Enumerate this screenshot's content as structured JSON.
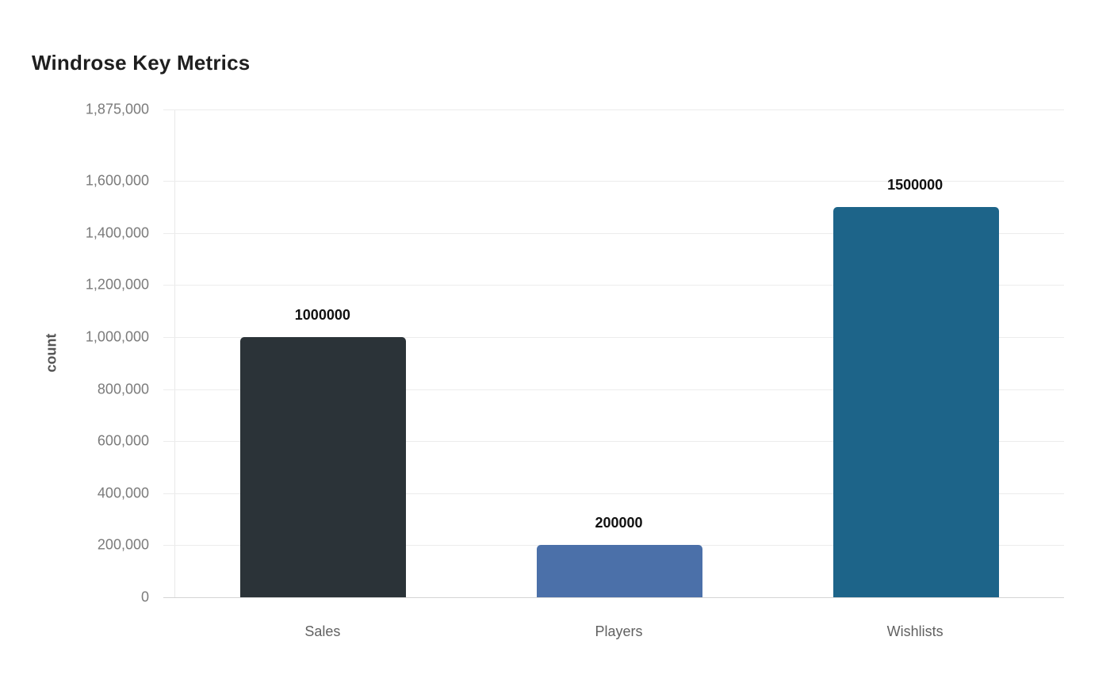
{
  "title": "Windrose Key Metrics",
  "y_axis_title": "count",
  "chart_data": {
    "type": "bar",
    "title": "Windrose Key Metrics",
    "xlabel": "",
    "ylabel": "count",
    "categories": [
      "Sales",
      "Players",
      "Wishlists"
    ],
    "values": [
      1000000,
      200000,
      1500000
    ],
    "value_labels": [
      "1000000",
      "200000",
      "1500000"
    ],
    "bar_colors": [
      "#2b3338",
      "#4b70a9",
      "#1d6489"
    ],
    "ylim": [
      0,
      1875000
    ],
    "yticks": [
      0,
      200000,
      400000,
      600000,
      800000,
      1000000,
      1200000,
      1400000,
      1600000,
      1875000
    ],
    "ytick_labels": [
      "0",
      "200,000",
      "400,000",
      "600,000",
      "800,000",
      "1,000,000",
      "1,200,000",
      "1,400,000",
      "1,600,000",
      "1,875,000"
    ],
    "grid": true,
    "legend": false,
    "background_color": "#ffffff",
    "gridline_color": "#ececec",
    "axis_line_color": "#d4d4d4",
    "title_color": "#1f1f1f",
    "tick_label_color": "#7b7b7b"
  }
}
